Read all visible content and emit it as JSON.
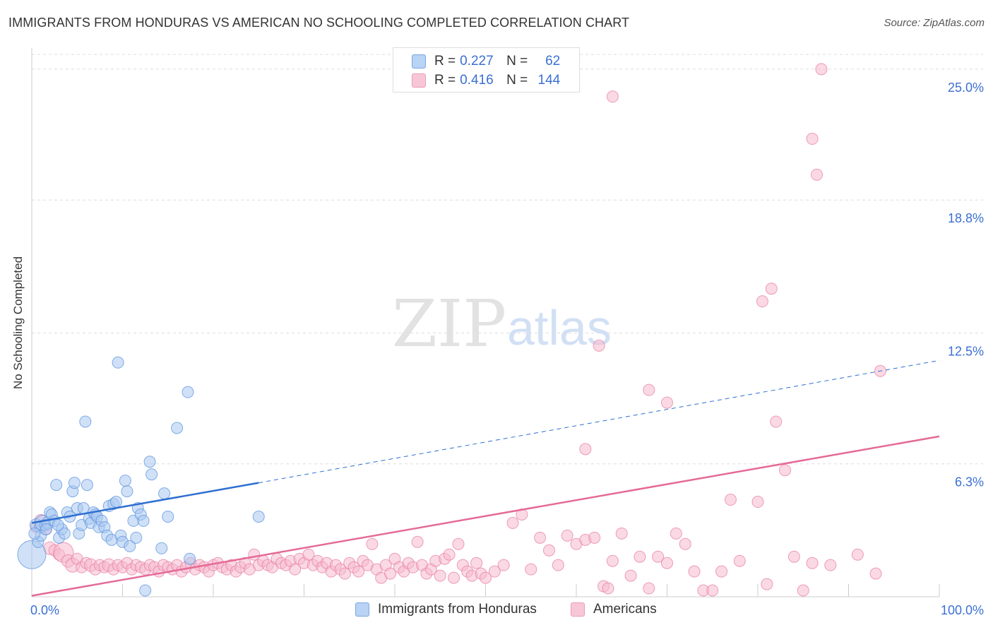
{
  "title": "IMMIGRANTS FROM HONDURAS VS AMERICAN NO SCHOOLING COMPLETED CORRELATION CHART",
  "source": "Source: ZipAtlas.com",
  "watermark": {
    "zip": "ZIP",
    "atlas": "atlas"
  },
  "colors": {
    "blue": "#5b93e0",
    "blue_fill": "#a9c8f0",
    "blue_line": "#2e6fd0",
    "pink": "#e87fa3",
    "pink_fill": "#f5b9cd",
    "pink_line": "#e46a97",
    "tick_text": "#3b6fd4",
    "grid": "#dddddd"
  },
  "legend": {
    "rows": [
      {
        "r_label": "R =",
        "r_value": "0.227",
        "n_label": "N =",
        "n_value": "62"
      },
      {
        "r_label": "R =",
        "r_value": "0.416",
        "n_label": "N =",
        "n_value": "144"
      }
    ]
  },
  "bottom_legend": [
    "Immigrants from Honduras",
    "Americans"
  ],
  "chart_data": {
    "type": "scatter",
    "xlabel": "",
    "ylabel": "No Schooling Completed",
    "xlim": [
      0,
      100
    ],
    "ylim": [
      0,
      25.6
    ],
    "x_ticks": [
      {
        "value": 0,
        "label": "0.0%"
      },
      {
        "value": 100,
        "label": "100.0%"
      }
    ],
    "y_ticks": [
      {
        "value": 6.3,
        "label": "6.3%"
      },
      {
        "value": 12.5,
        "label": "12.5%"
      },
      {
        "value": 18.8,
        "label": "18.8%"
      },
      {
        "value": 25.0,
        "label": "25.0%"
      }
    ],
    "series": [
      {
        "name": "Immigrants from Honduras",
        "r": 0.227,
        "n": 62,
        "trend": {
          "x0": 0,
          "y0": 3.5,
          "x1": 25,
          "y1": 5.4,
          "dashed_to_x": 100,
          "dashed_to_y": 11.2
        },
        "points": [
          [
            0.0,
            2.0,
            18
          ],
          [
            0.5,
            3.4,
            7
          ],
          [
            0.7,
            2.6,
            6
          ],
          [
            0.9,
            3.3,
            6
          ],
          [
            1.2,
            3.5,
            9
          ],
          [
            1.5,
            3.4,
            6
          ],
          [
            1.8,
            3.5,
            7
          ],
          [
            2.0,
            4.0,
            6
          ],
          [
            2.2,
            3.9,
            6
          ],
          [
            2.5,
            3.6,
            6
          ],
          [
            2.7,
            5.3,
            6
          ],
          [
            3.0,
            2.8,
            6
          ],
          [
            3.3,
            3.2,
            6
          ],
          [
            3.6,
            3.0,
            6
          ],
          [
            3.9,
            4.0,
            6
          ],
          [
            4.2,
            3.8,
            6
          ],
          [
            4.5,
            5.0,
            6
          ],
          [
            4.7,
            5.4,
            6
          ],
          [
            5.0,
            4.2,
            6
          ],
          [
            5.2,
            3.0,
            6
          ],
          [
            5.5,
            3.4,
            6
          ],
          [
            5.7,
            4.2,
            6
          ],
          [
            5.9,
            8.3,
            6
          ],
          [
            6.1,
            5.3,
            6
          ],
          [
            6.3,
            3.7,
            6
          ],
          [
            6.5,
            3.5,
            6
          ],
          [
            6.8,
            4.0,
            6
          ],
          [
            7.0,
            3.9,
            6
          ],
          [
            7.2,
            3.8,
            6
          ],
          [
            7.4,
            3.3,
            6
          ],
          [
            7.7,
            3.6,
            6
          ],
          [
            8.0,
            3.3,
            6
          ],
          [
            8.3,
            2.9,
            6
          ],
          [
            8.5,
            4.3,
            6
          ],
          [
            8.8,
            2.7,
            6
          ],
          [
            9.0,
            4.4,
            6
          ],
          [
            9.3,
            4.5,
            6
          ],
          [
            9.5,
            11.1,
            6
          ],
          [
            9.8,
            2.9,
            6
          ],
          [
            10.0,
            2.6,
            6
          ],
          [
            10.3,
            5.5,
            6
          ],
          [
            10.5,
            5.0,
            6
          ],
          [
            10.8,
            2.4,
            6
          ],
          [
            11.2,
            3.6,
            6
          ],
          [
            11.5,
            2.8,
            6
          ],
          [
            11.7,
            4.2,
            6
          ],
          [
            12.0,
            3.9,
            6
          ],
          [
            12.3,
            3.6,
            6
          ],
          [
            13.0,
            6.4,
            6
          ],
          [
            13.2,
            5.8,
            6
          ],
          [
            14.3,
            2.3,
            6
          ],
          [
            14.6,
            4.9,
            6
          ],
          [
            15.0,
            3.8,
            6
          ],
          [
            16.0,
            8.0,
            6
          ],
          [
            17.2,
            9.7,
            6
          ],
          [
            17.4,
            1.8,
            6
          ],
          [
            12.5,
            0.3,
            6
          ],
          [
            25.0,
            3.8,
            6
          ],
          [
            1.0,
            2.9,
            6
          ],
          [
            0.3,
            3.0,
            6
          ],
          [
            2.9,
            3.4,
            6
          ],
          [
            1.6,
            3.2,
            6
          ]
        ]
      },
      {
        "name": "Americans",
        "r": 0.416,
        "n": 144,
        "trend": {
          "x0": 0,
          "y0": 0.05,
          "x1": 100,
          "y1": 7.6
        },
        "points": [
          [
            0.5,
            3.3,
            6
          ],
          [
            1.0,
            3.6,
            7
          ],
          [
            1.5,
            3.2,
            6
          ],
          [
            2.0,
            2.3,
            7
          ],
          [
            2.5,
            2.2,
            6
          ],
          [
            3.0,
            2.0,
            6
          ],
          [
            3.5,
            2.1,
            12
          ],
          [
            4.0,
            1.7,
            7
          ],
          [
            4.5,
            1.5,
            8
          ],
          [
            5.0,
            1.8,
            6
          ],
          [
            5.5,
            1.4,
            6
          ],
          [
            6.0,
            1.6,
            6
          ],
          [
            6.5,
            1.5,
            7
          ],
          [
            7.0,
            1.3,
            6
          ],
          [
            7.5,
            1.5,
            6
          ],
          [
            8.0,
            1.4,
            6
          ],
          [
            8.5,
            1.5,
            7
          ],
          [
            9.0,
            1.3,
            6
          ],
          [
            9.5,
            1.5,
            6
          ],
          [
            10.0,
            1.4,
            6
          ],
          [
            10.5,
            1.6,
            6
          ],
          [
            11.0,
            1.3,
            6
          ],
          [
            11.5,
            1.5,
            6
          ],
          [
            12.0,
            1.4,
            6
          ],
          [
            12.5,
            1.3,
            6
          ],
          [
            13.0,
            1.5,
            6
          ],
          [
            13.5,
            1.4,
            6
          ],
          [
            14.0,
            1.2,
            6
          ],
          [
            14.5,
            1.5,
            6
          ],
          [
            15.0,
            1.4,
            6
          ],
          [
            15.5,
            1.3,
            6
          ],
          [
            16.0,
            1.5,
            6
          ],
          [
            16.5,
            1.2,
            6
          ],
          [
            17.0,
            1.4,
            6
          ],
          [
            17.5,
            1.6,
            6
          ],
          [
            18.0,
            1.3,
            6
          ],
          [
            18.5,
            1.5,
            6
          ],
          [
            19.0,
            1.4,
            6
          ],
          [
            19.5,
            1.2,
            6
          ],
          [
            20.0,
            1.5,
            6
          ],
          [
            20.5,
            1.6,
            6
          ],
          [
            21.0,
            1.4,
            6
          ],
          [
            21.5,
            1.3,
            6
          ],
          [
            22.0,
            1.5,
            6
          ],
          [
            22.5,
            1.2,
            6
          ],
          [
            23.0,
            1.4,
            6
          ],
          [
            23.5,
            1.6,
            6
          ],
          [
            24.0,
            1.3,
            6
          ],
          [
            24.5,
            2.0,
            6
          ],
          [
            25.0,
            1.5,
            6
          ],
          [
            25.5,
            1.7,
            6
          ],
          [
            26.0,
            1.5,
            6
          ],
          [
            26.5,
            1.4,
            6
          ],
          [
            27.0,
            1.8,
            6
          ],
          [
            27.5,
            1.6,
            6
          ],
          [
            28.0,
            1.5,
            6
          ],
          [
            28.5,
            1.7,
            6
          ],
          [
            29.0,
            1.3,
            6
          ],
          [
            29.5,
            1.8,
            6
          ],
          [
            30.0,
            1.6,
            6
          ],
          [
            30.5,
            2.0,
            6
          ],
          [
            31.0,
            1.5,
            6
          ],
          [
            31.5,
            1.7,
            6
          ],
          [
            32.0,
            1.4,
            6
          ],
          [
            32.5,
            1.6,
            6
          ],
          [
            33.0,
            1.2,
            6
          ],
          [
            33.5,
            1.5,
            6
          ],
          [
            34.0,
            1.3,
            6
          ],
          [
            34.5,
            1.1,
            6
          ],
          [
            35.0,
            1.6,
            6
          ],
          [
            35.5,
            1.4,
            6
          ],
          [
            36.0,
            1.2,
            6
          ],
          [
            36.5,
            1.7,
            6
          ],
          [
            37.0,
            1.5,
            6
          ],
          [
            37.5,
            2.5,
            6
          ],
          [
            38.0,
            1.3,
            6
          ],
          [
            38.5,
            0.9,
            6
          ],
          [
            39.0,
            1.5,
            6
          ],
          [
            39.5,
            1.1,
            6
          ],
          [
            40.0,
            1.8,
            6
          ],
          [
            40.5,
            1.4,
            6
          ],
          [
            41.0,
            1.2,
            6
          ],
          [
            41.5,
            1.6,
            6
          ],
          [
            42.0,
            1.4,
            6
          ],
          [
            42.5,
            2.6,
            6
          ],
          [
            43.0,
            1.5,
            6
          ],
          [
            43.5,
            1.1,
            6
          ],
          [
            44.0,
            1.3,
            6
          ],
          [
            44.5,
            1.7,
            6
          ],
          [
            45.0,
            1.0,
            6
          ],
          [
            45.5,
            1.8,
            6
          ],
          [
            46.0,
            2.0,
            6
          ],
          [
            46.5,
            0.9,
            6
          ],
          [
            47.0,
            2.5,
            6
          ],
          [
            47.5,
            1.5,
            6
          ],
          [
            48.0,
            1.2,
            6
          ],
          [
            48.5,
            1.0,
            6
          ],
          [
            49.0,
            1.6,
            6
          ],
          [
            49.5,
            1.1,
            6
          ],
          [
            50.0,
            0.9,
            6
          ],
          [
            51.0,
            1.2,
            6
          ],
          [
            52.0,
            1.5,
            6
          ],
          [
            53.0,
            3.5,
            6
          ],
          [
            54.0,
            3.9,
            6
          ],
          [
            55.0,
            1.3,
            6
          ],
          [
            56.0,
            2.8,
            6
          ],
          [
            57.0,
            2.2,
            6
          ],
          [
            58.0,
            1.5,
            6
          ],
          [
            59.0,
            2.9,
            6
          ],
          [
            60.0,
            2.5,
            6
          ],
          [
            61.0,
            2.7,
            6
          ],
          [
            62.0,
            2.8,
            6
          ],
          [
            63.0,
            0.5,
            6
          ],
          [
            63.5,
            0.4,
            6
          ],
          [
            64.0,
            1.7,
            6
          ],
          [
            65.0,
            3.0,
            6
          ],
          [
            66.0,
            1.0,
            6
          ],
          [
            67.0,
            1.9,
            6
          ],
          [
            68.0,
            0.4,
            6
          ],
          [
            69.0,
            1.9,
            6
          ],
          [
            70.0,
            1.6,
            6
          ],
          [
            71.0,
            3.0,
            6
          ],
          [
            72.0,
            2.5,
            6
          ],
          [
            73.0,
            1.2,
            6
          ],
          [
            74.0,
            0.3,
            6
          ],
          [
            75.0,
            0.3,
            6
          ],
          [
            76.0,
            1.2,
            6
          ],
          [
            77.0,
            4.6,
            6
          ],
          [
            78.0,
            1.7,
            6
          ],
          [
            80.0,
            4.5,
            6
          ],
          [
            81.0,
            0.6,
            6
          ],
          [
            82.0,
            8.3,
            6
          ],
          [
            83.0,
            6.0,
            6
          ],
          [
            84.0,
            1.9,
            6
          ],
          [
            85.0,
            0.3,
            6
          ],
          [
            86.0,
            1.6,
            6
          ],
          [
            88.0,
            1.5,
            6
          ],
          [
            91.0,
            2.0,
            6
          ],
          [
            93.0,
            1.1,
            6
          ],
          [
            61.0,
            7.0,
            6
          ],
          [
            62.5,
            11.9,
            6
          ],
          [
            64.0,
            23.7,
            6
          ],
          [
            68.0,
            9.8,
            6
          ],
          [
            70.0,
            9.2,
            6
          ],
          [
            80.5,
            14.0,
            6
          ],
          [
            81.5,
            14.6,
            6
          ],
          [
            86.0,
            21.7,
            6
          ],
          [
            86.5,
            20.0,
            6
          ],
          [
            87.0,
            25.0,
            6
          ],
          [
            93.5,
            10.7,
            6
          ]
        ]
      }
    ]
  }
}
